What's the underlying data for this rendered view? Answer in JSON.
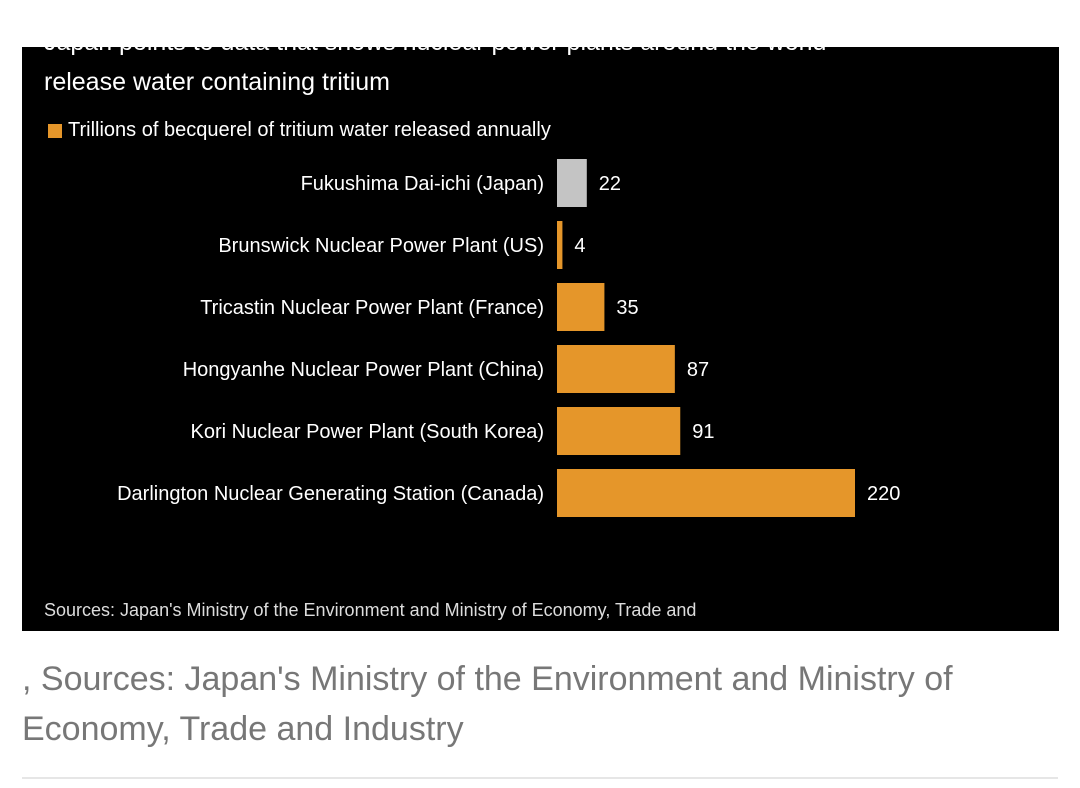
{
  "chart_data": {
    "type": "bar",
    "orientation": "horizontal",
    "title": "Japan points to data that shows nuclear power plants around the world release water containing tritium",
    "title_lines": [
      "Japan points to data that shows nuclear power plants around the world",
      "release water containing tritium"
    ],
    "legend": "Trillions of becquerel of tritium water released annually",
    "categories": [
      "Fukushima Dai-ichi (Japan)",
      "Brunswick Nuclear Power Plant (US)",
      "Tricastin Nuclear Power Plant (France)",
      "Hongyanhe Nuclear Power Plant (China)",
      "Kori Nuclear Power Plant (South Korea)",
      "Darlington Nuclear Generating Station (Canada)"
    ],
    "values": [
      22,
      4,
      35,
      87,
      91,
      220
    ],
    "colors": [
      "#c4c4c4",
      "#e5962a",
      "#e5962a",
      "#e5962a",
      "#e5962a",
      "#e5962a"
    ],
    "xlim": [
      0,
      220
    ],
    "grid": false,
    "source": "Sources: Japan's Ministry of the Environment and Ministry of Economy, Trade and"
  },
  "caption": ", Sources: Japan's Ministry of the Environment and Ministry of Economy, Trade and Industry"
}
